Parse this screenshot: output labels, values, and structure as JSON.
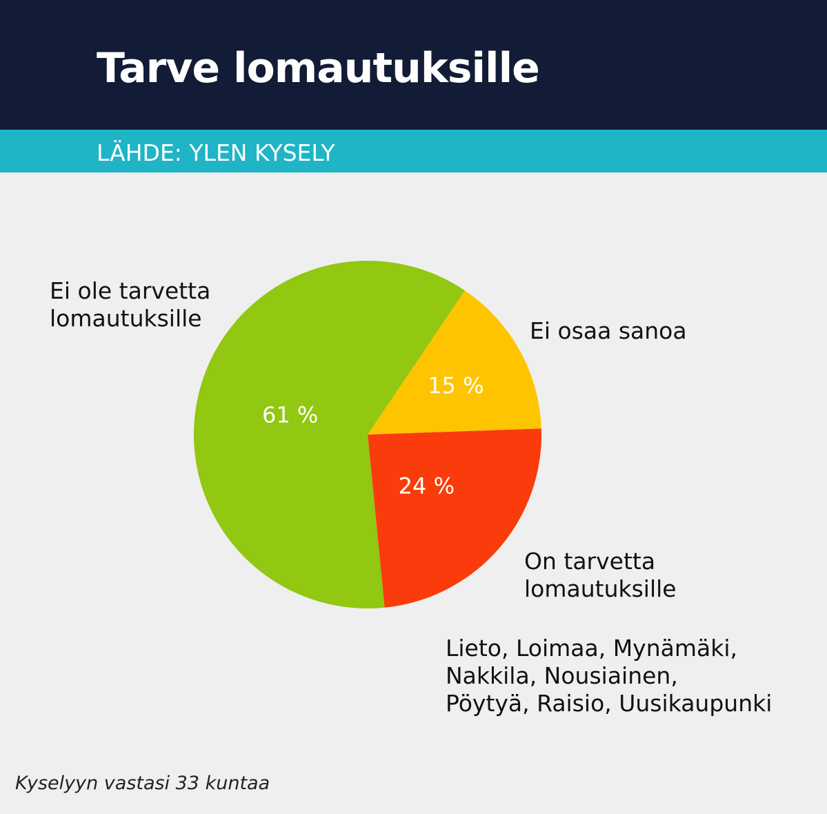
{
  "header": {
    "title": "Tarve lomautuksille"
  },
  "source": "LÄHDE: YLEN KYSELY",
  "chart_data": {
    "type": "pie",
    "title": "Tarve lomautuksille",
    "slices": [
      {
        "label_lines": [
          "Ei osaa sanoa"
        ],
        "value": 15,
        "value_label": "15 %",
        "color": "#ffc400"
      },
      {
        "label_lines": [
          "On tarvetta",
          "lomautuksille"
        ],
        "value": 24,
        "value_label": "24 %",
        "color": "#fa3c0c"
      },
      {
        "label_lines": [
          "Ei ole tarvetta",
          "lomautuksille"
        ],
        "value": 61,
        "value_label": "61 %",
        "color": "#92c712"
      }
    ]
  },
  "municipalities": [
    "Lieto, Loimaa, Mynämäki,",
    "Nakkila, Nousiainen,",
    "Pöytyä, Raisio, Uusikaupunki"
  ],
  "footer": "Kyselyyn vastasi 33 kuntaa"
}
